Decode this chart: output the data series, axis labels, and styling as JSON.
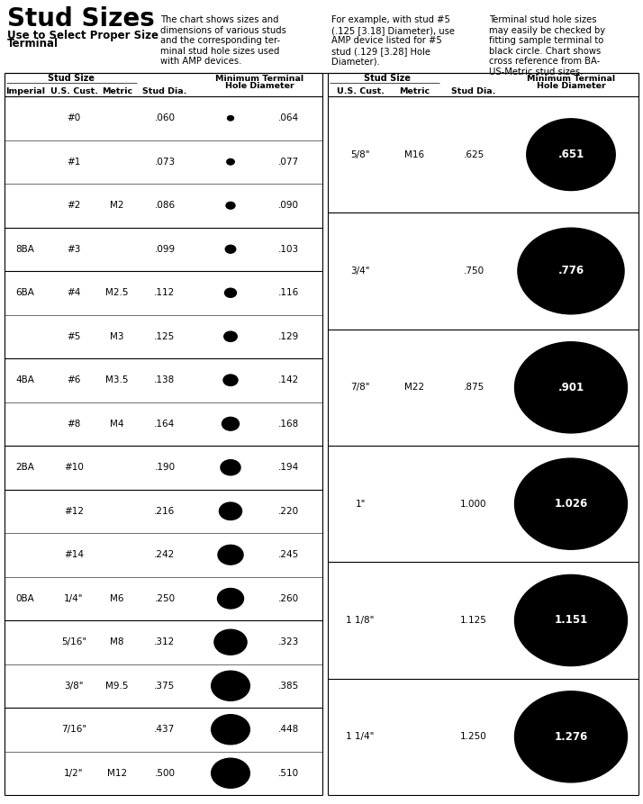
{
  "title": "Stud Sizes",
  "subtitle1": "Use to Select Proper Size",
  "subtitle2": "Terminal",
  "desc1": "The chart shows sizes and\ndimensions of various studs\nand the corresponding ter-\nminal stud hole sizes used\nwith AMP devices.",
  "desc2": "For example, with stud #5\n(.125 [3.18] Diameter), use\nAMP device listed for #5\nstud (.129 [3.28] Hole\nDiameter).",
  "desc3": "Terminal stud hole sizes\nmay easily be checked by\nfitting sample terminal to\nblack circle. Chart shows\ncross reference from BA-\nUS-Metric stud sizes.",
  "left_rows": [
    [
      "",
      "#0",
      "",
      ".060",
      ".064"
    ],
    [
      "",
      "#1",
      "",
      ".073",
      ".077"
    ],
    [
      "",
      "#2",
      "M2",
      ".086",
      ".090"
    ],
    [
      "8BA",
      "#3",
      "",
      ".099",
      ".103"
    ],
    [
      "6BA",
      "#4",
      "M2.5",
      ".112",
      ".116"
    ],
    [
      "",
      "#5",
      "M3",
      ".125",
      ".129"
    ],
    [
      "4BA",
      "#6",
      "M3.5",
      ".138",
      ".142"
    ],
    [
      "",
      "#8",
      "M4",
      ".164",
      ".168"
    ],
    [
      "2BA",
      "#10",
      "",
      ".190",
      ".194"
    ],
    [
      "",
      "#12",
      "",
      ".216",
      ".220"
    ],
    [
      "",
      "#14",
      "",
      ".242",
      ".245"
    ],
    [
      "0BA",
      "1/4\"",
      "M6",
      ".250",
      ".260"
    ],
    [
      "",
      "5/16\"",
      "M8",
      ".312",
      ".323"
    ],
    [
      "",
      "3/8\"",
      "M9.5",
      ".375",
      ".385"
    ],
    [
      "",
      "7/16\"",
      "",
      ".437",
      ".448"
    ],
    [
      "",
      "1/2\"",
      "M12",
      ".500",
      ".510"
    ]
  ],
  "left_dividers_after": [
    2,
    3,
    5,
    7,
    8,
    11,
    13
  ],
  "right_rows": [
    [
      "5/8\"",
      "M16",
      ".625",
      ".651"
    ],
    [
      "3/4\"",
      "",
      ".750",
      ".776"
    ],
    [
      "7/8\"",
      "M22",
      ".875",
      ".901"
    ],
    [
      "1\"",
      "",
      "1.000",
      "1.026"
    ],
    [
      "1 1/8\"",
      "",
      "1.125",
      "1.151"
    ],
    [
      "1 1/4\"",
      "",
      "1.250",
      "1.276"
    ]
  ],
  "bg_color": "#ffffff"
}
